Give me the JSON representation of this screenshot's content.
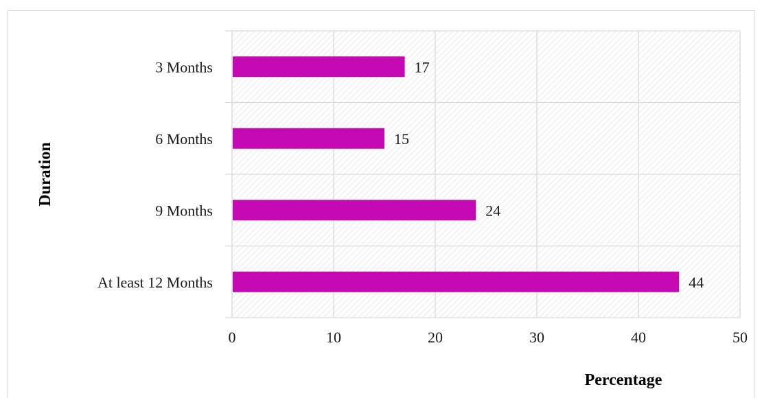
{
  "chart_data": {
    "type": "bar",
    "orientation": "horizontal",
    "categories": [
      "3 Months",
      "6 Months",
      "9 Months",
      "At least 12 Months"
    ],
    "values": [
      17,
      15,
      24,
      44
    ],
    "data_labels": [
      "17",
      "15",
      "24",
      "44"
    ],
    "xlabel": "Percentage",
    "ylabel": "Duration",
    "xlim": [
      0,
      50
    ],
    "x_ticks": [
      "0",
      "10",
      "20",
      "30",
      "40",
      "50"
    ],
    "grid": true,
    "plot_background": "diagonal hatch",
    "legend": "none",
    "bar_color": "#c409b2",
    "grid_color": "#d9d9d9",
    "hatch_color": "#dedede"
  }
}
